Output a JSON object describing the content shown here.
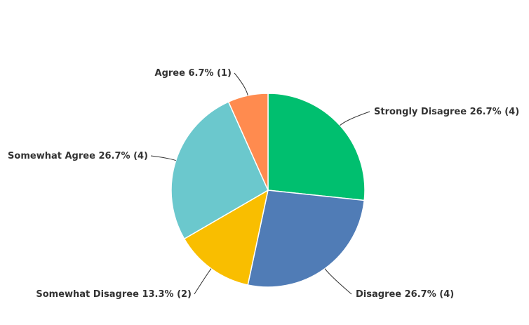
{
  "chart_data": {
    "type": "pie",
    "categories": [
      "Strongly Disagree",
      "Disagree",
      "Somewhat Disagree",
      "Somewhat Agree",
      "Agree"
    ],
    "values": [
      26.7,
      26.7,
      13.3,
      26.7,
      6.7
    ],
    "value_labels": [
      "26.7% (4)",
      "26.7% (4)",
      "13.3% (2)",
      "26.7% (4)",
      "6.7% (1)"
    ],
    "colors": [
      "#00bf6f",
      "#507cb6",
      "#f9be00",
      "#6bc8cd",
      "#ff8b4f"
    ]
  }
}
